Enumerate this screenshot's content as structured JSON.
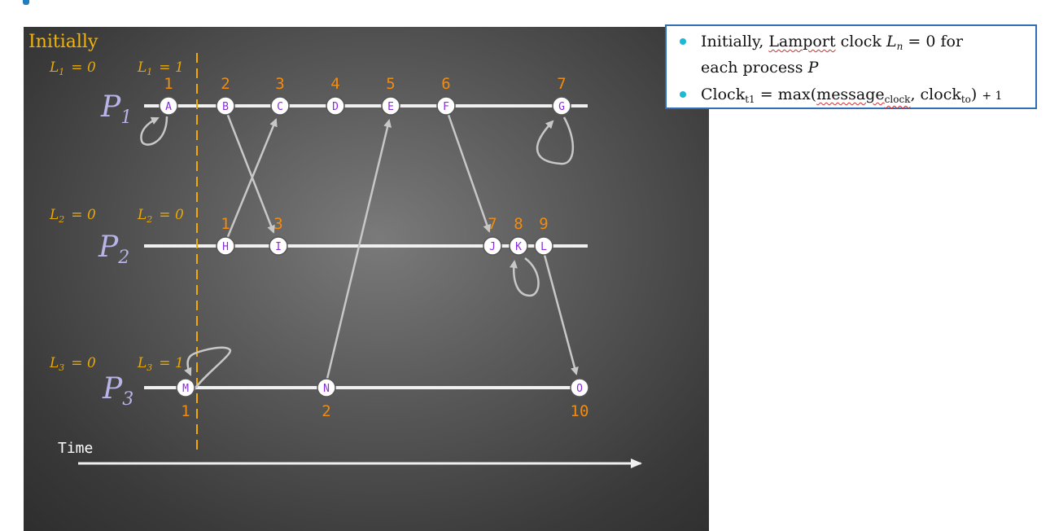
{
  "diagram": {
    "initially_label": "Initially",
    "time_label": "Time",
    "processes": [
      {
        "id": "P1",
        "letter": "P",
        "sub": "1"
      },
      {
        "id": "P2",
        "letter": "P",
        "sub": "2"
      },
      {
        "id": "P3",
        "letter": "P",
        "sub": "3"
      }
    ],
    "initial_clocks": [
      {
        "before": {
          "L": "L",
          "sub": "1",
          "rest": "= 0"
        },
        "after": {
          "L": "L",
          "sub": "1",
          "rest": "= 1"
        }
      },
      {
        "before": {
          "L": "L",
          "sub": "2",
          "rest": "= 0"
        },
        "after": {
          "L": "L",
          "sub": "2",
          "rest": "= 0"
        }
      },
      {
        "before": {
          "L": "L",
          "sub": "3",
          "rest": "= 0"
        },
        "after": {
          "L": "L",
          "sub": "3",
          "rest": "= 1"
        }
      }
    ],
    "events": [
      {
        "label": "A",
        "process": "P1",
        "clock": "1"
      },
      {
        "label": "B",
        "process": "P1",
        "clock": "2"
      },
      {
        "label": "C",
        "process": "P1",
        "clock": "3"
      },
      {
        "label": "D",
        "process": "P1",
        "clock": "4"
      },
      {
        "label": "E",
        "process": "P1",
        "clock": "5"
      },
      {
        "label": "F",
        "process": "P1",
        "clock": "6"
      },
      {
        "label": "G",
        "process": "P1",
        "clock": "7"
      },
      {
        "label": "H",
        "process": "P2",
        "clock": "1"
      },
      {
        "label": "I",
        "process": "P2",
        "clock": "3"
      },
      {
        "label": "J",
        "process": "P2",
        "clock": "7"
      },
      {
        "label": "K",
        "process": "P2",
        "clock": "8"
      },
      {
        "label": "L",
        "process": "P2",
        "clock": "9"
      },
      {
        "label": "M",
        "process": "P3",
        "clock": "1"
      },
      {
        "label": "N",
        "process": "P3",
        "clock": "2"
      },
      {
        "label": "O",
        "process": "P3",
        "clock": "10"
      }
    ],
    "messages": [
      {
        "from": "B",
        "to": "I"
      },
      {
        "from": "H",
        "to": "C"
      },
      {
        "from": "N",
        "to": "E"
      },
      {
        "from": "F",
        "to": "J"
      },
      {
        "from": "L",
        "to": "O"
      }
    ],
    "local_events": [
      "A",
      "G",
      "K",
      "M"
    ]
  },
  "notes": {
    "item1": {
      "pre": "Initially, ",
      "lamport": "Lamport",
      "mid": " clock ",
      "var": "L",
      "var_sub": "n",
      "eq": " =  0 for",
      "line2": "each process ",
      "proc": "P"
    },
    "item2": {
      "clock": "Clock",
      "clock_sub": "t1",
      "eq": " = max(",
      "message": "message",
      "message_sub": "clock",
      "comma": ", clock",
      "to_sub": "to",
      "tail": ") ",
      "plus_one": "+ 1"
    }
  }
}
